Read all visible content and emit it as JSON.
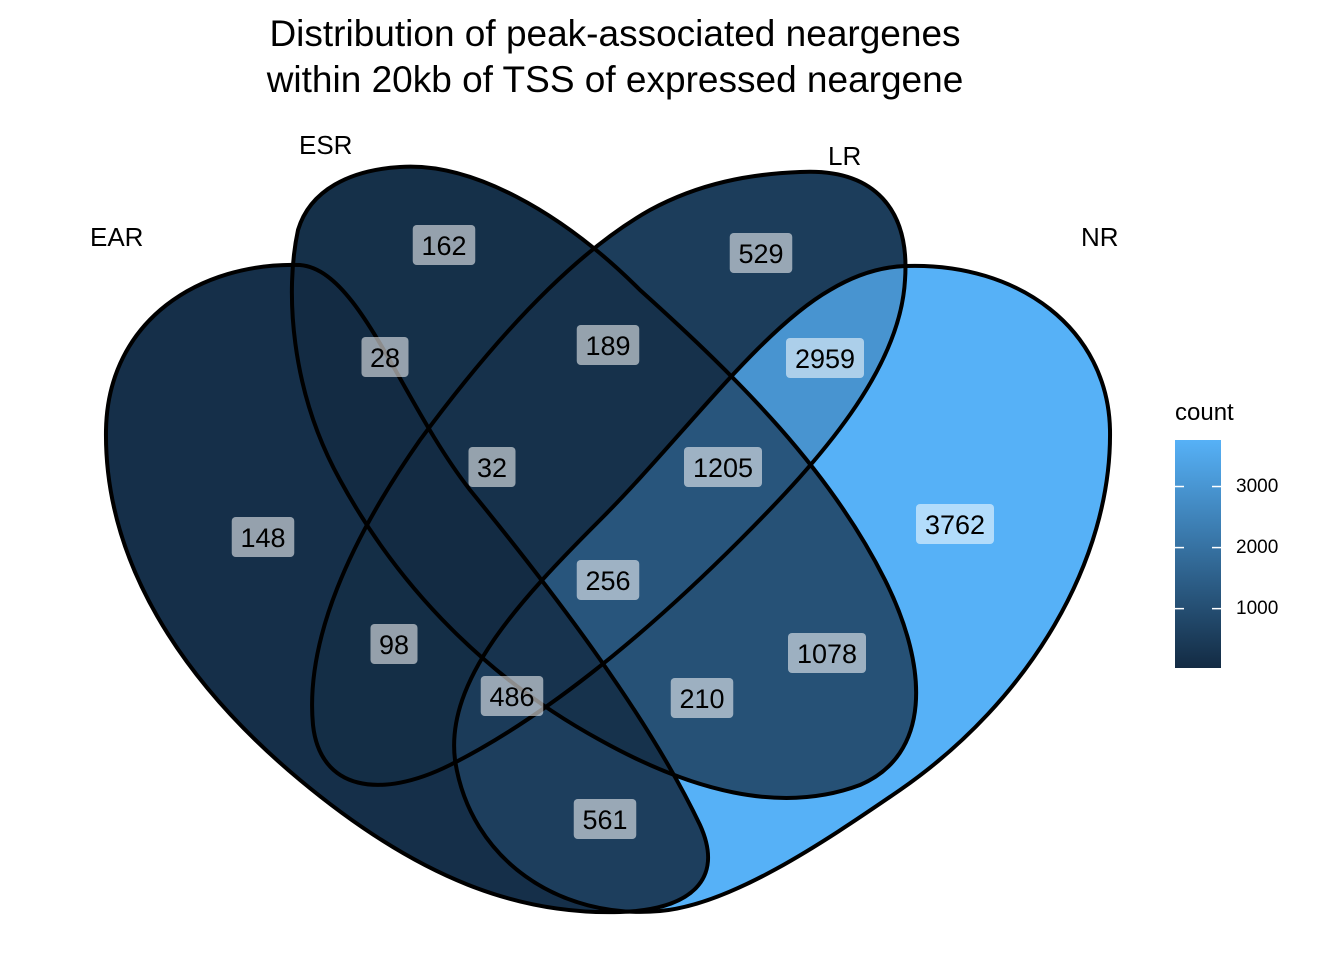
{
  "chart_data": {
    "type": "venn",
    "title_lines": [
      "Distribution of peak-associated neargenes",
      "within 20kb of TSS of expressed neargene"
    ],
    "sets": [
      "EAR",
      "ESR",
      "LR",
      "NR"
    ],
    "regions": [
      {
        "sets": [
          "EAR"
        ],
        "count": 148
      },
      {
        "sets": [
          "ESR"
        ],
        "count": 162
      },
      {
        "sets": [
          "LR"
        ],
        "count": 529
      },
      {
        "sets": [
          "NR"
        ],
        "count": 3762
      },
      {
        "sets": [
          "EAR",
          "ESR"
        ],
        "count": 28
      },
      {
        "sets": [
          "ESR",
          "LR"
        ],
        "count": 189
      },
      {
        "sets": [
          "LR",
          "NR"
        ],
        "count": 2959
      },
      {
        "sets": [
          "EAR",
          "ESR",
          "LR"
        ],
        "count": 32
      },
      {
        "sets": [
          "ESR",
          "LR",
          "NR"
        ],
        "count": 1205
      },
      {
        "sets": [
          "EAR",
          "ESR",
          "LR",
          "NR"
        ],
        "count": 256
      },
      {
        "sets": [
          "EAR",
          "LR"
        ],
        "count": 98
      },
      {
        "sets": [
          "ESR",
          "NR"
        ],
        "count": 1078
      },
      {
        "sets": [
          "EAR",
          "LR",
          "NR"
        ],
        "count": 486
      },
      {
        "sets": [
          "EAR",
          "ESR",
          "NR"
        ],
        "count": 210
      },
      {
        "sets": [
          "EAR",
          "NR"
        ],
        "count": 561
      }
    ],
    "legend": {
      "title": "count",
      "range": [
        28,
        3762
      ],
      "ticks": [
        1000,
        2000,
        3000
      ],
      "low_color": "#132B43",
      "high_color": "#56B1F7"
    }
  }
}
